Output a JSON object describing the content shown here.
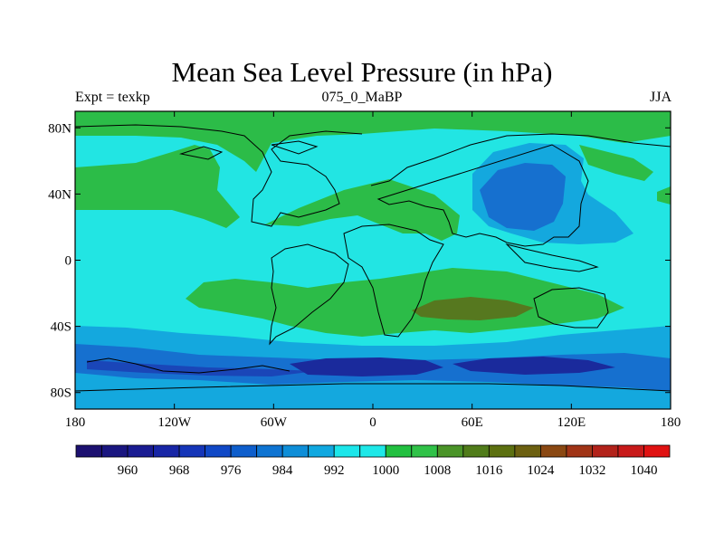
{
  "title": "Mean Sea Level Pressure (in hPa)",
  "subtitle_left": "Expt = texkp",
  "subtitle_center": "075_0_MaBP",
  "subtitle_right": "JJA",
  "map": {
    "lon_ticks": [
      "180",
      "120W",
      "60W",
      "0",
      "60E",
      "120E",
      "180"
    ],
    "lat_ticks": [
      "80N",
      "40N",
      "0",
      "40S",
      "80S"
    ],
    "lon_range": [
      -180,
      180
    ],
    "lat_range": [
      -90,
      90
    ]
  },
  "colorbar": {
    "levels": [
      956,
      960,
      964,
      968,
      972,
      976,
      980,
      984,
      988,
      992,
      996,
      1000,
      1004,
      1008,
      1012,
      1016,
      1020,
      1024,
      1028,
      1032,
      1036,
      1040,
      1044
    ],
    "colors": [
      "#1c1070",
      "#1a1680",
      "#1a1c92",
      "#1826a6",
      "#1535b8",
      "#1048c6",
      "#0e5ecc",
      "#0e74d2",
      "#0e8ed8",
      "#10a8e0",
      "#1ce6ea",
      "#1ee8e8",
      "#22c040",
      "#30c248",
      "#4a9428",
      "#507c1a",
      "#5c7010",
      "#6c6010",
      "#8a4812",
      "#a03416",
      "#b2221a",
      "#c81a1a",
      "#e01212"
    ],
    "labels": [
      "960",
      "968",
      "976",
      "984",
      "992",
      "1000",
      "1008",
      "1016",
      "1024",
      "1032",
      "1040"
    ]
  },
  "palette": {
    "background": "#22e5e3",
    "green": "#2cbc48",
    "olive": "#56781f",
    "light_blue": "#14a8de",
    "mid_blue": "#1670cf",
    "dark_blue": "#1a46b8",
    "deep_blue": "#1a2a9c",
    "outline": "#000000"
  }
}
